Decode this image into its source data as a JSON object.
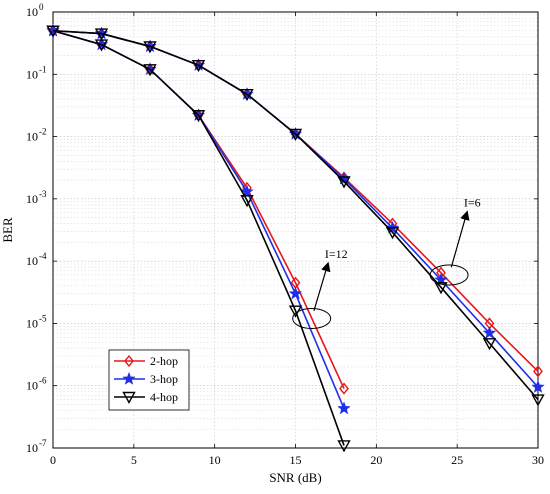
{
  "chart_data": {
    "type": "line",
    "xlabel": "SNR (dB)",
    "ylabel": "BER",
    "xlim": [
      0,
      30
    ],
    "ylim_log10": [
      -7,
      0
    ],
    "y_scale": "log",
    "grid": true,
    "legend_position": "lower-left",
    "x_ticks": [
      "0",
      "5",
      "10",
      "15",
      "20",
      "25",
      "30"
    ],
    "y_ticks": [
      {
        "base": "10",
        "exp": "0"
      },
      {
        "base": "10",
        "exp": "-1"
      },
      {
        "base": "10",
        "exp": "-2"
      },
      {
        "base": "10",
        "exp": "-3"
      },
      {
        "base": "10",
        "exp": "-4"
      },
      {
        "base": "10",
        "exp": "-5"
      },
      {
        "base": "10",
        "exp": "-6"
      },
      {
        "base": "10",
        "exp": "-7"
      }
    ],
    "series": [
      {
        "name": "2-hop",
        "color": "#e8171b",
        "marker": "diamond",
        "group": "I=12",
        "x": [
          0,
          3,
          6,
          9,
          12,
          15,
          18
        ],
        "y": [
          0.5,
          0.3,
          0.12,
          0.022,
          0.0015,
          4.5e-05,
          9e-07
        ]
      },
      {
        "name": "3-hop",
        "color": "#1f2fe8",
        "marker": "star",
        "group": "I=12",
        "x": [
          0,
          3,
          6,
          9,
          12,
          15,
          18
        ],
        "y": [
          0.5,
          0.3,
          0.12,
          0.022,
          0.0013,
          3e-05,
          4.3e-07
        ]
      },
      {
        "name": "4-hop",
        "color": "#000000",
        "marker": "triangle-down",
        "group": "I=12",
        "x": [
          0,
          3,
          6,
          9,
          12,
          15,
          18
        ],
        "y": [
          0.5,
          0.3,
          0.12,
          0.022,
          0.00095,
          1.6e-05,
          1.1e-07
        ]
      },
      {
        "name": "2-hop",
        "color": "#e8171b",
        "marker": "diamond",
        "group": "I=6",
        "x": [
          0,
          3,
          6,
          9,
          12,
          15,
          18,
          21,
          24,
          27,
          30
        ],
        "y": [
          0.5,
          0.45,
          0.28,
          0.14,
          0.048,
          0.011,
          0.0022,
          0.0004,
          6.5e-05,
          1e-05,
          1.7e-06
        ]
      },
      {
        "name": "3-hop",
        "color": "#1f2fe8",
        "marker": "star",
        "group": "I=6",
        "x": [
          0,
          3,
          6,
          9,
          12,
          15,
          18,
          21,
          24,
          27,
          30
        ],
        "y": [
          0.5,
          0.45,
          0.28,
          0.14,
          0.048,
          0.011,
          0.0021,
          0.00034,
          5e-05,
          7e-06,
          9.5e-07
        ]
      },
      {
        "name": "4-hop",
        "color": "#000000",
        "marker": "triangle-down",
        "group": "I=6",
        "x": [
          0,
          3,
          6,
          9,
          12,
          15,
          18,
          21,
          24,
          27,
          30
        ],
        "y": [
          0.5,
          0.45,
          0.28,
          0.14,
          0.048,
          0.011,
          0.0019,
          0.00029,
          3.8e-05,
          4.8e-06,
          6e-07
        ]
      }
    ],
    "legend": [
      {
        "label": "2-hop",
        "color": "#e8171b",
        "marker": "diamond"
      },
      {
        "label": "3-hop",
        "color": "#1f2fe8",
        "marker": "star"
      },
      {
        "label": "4-hop",
        "color": "#000000",
        "marker": "triangle-down"
      }
    ],
    "annotations": [
      {
        "text": "I=12",
        "ellipse_center": [
          16,
          1.2e-05
        ],
        "arrow_tip": [
          17,
          9e-05
        ]
      },
      {
        "text": "I=6",
        "ellipse_center": [
          24.5,
          6e-05
        ],
        "arrow_tip": [
          25.6,
          0.0006
        ]
      }
    ]
  }
}
